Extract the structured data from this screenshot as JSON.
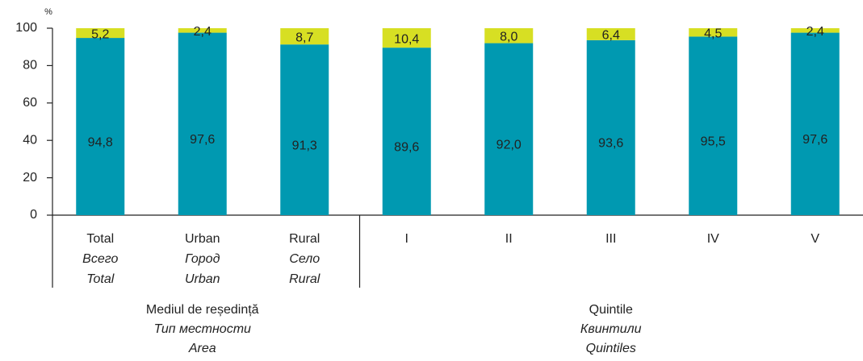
{
  "chart_data": {
    "type": "stacked_bar",
    "y_unit": "%",
    "categories": [
      "Total",
      "Urban",
      "Rural",
      "I",
      "II",
      "III",
      "IV",
      "V"
    ],
    "category_sublabels": [
      [
        "Всего",
        "Total"
      ],
      [
        "Город",
        "Urban"
      ],
      [
        "Село",
        "Rural"
      ],
      [],
      [],
      [],
      [],
      []
    ],
    "groups": [
      {
        "labels": [
          "Mediul de reședință",
          "Тип местности",
          "Area"
        ],
        "size": 3
      },
      {
        "labels": [
          "Quintile",
          "Квинтили",
          "Quintiles"
        ],
        "size": 5
      }
    ],
    "series": [
      {
        "color": "#0099b1",
        "values": [
          94.8,
          97.6,
          91.3,
          89.6,
          92.0,
          93.6,
          95.5,
          97.6
        ],
        "value_labels": [
          "94,8",
          "97,6",
          "91,3",
          "89,6",
          "92,0",
          "93,6",
          "95,5",
          "97,6"
        ]
      },
      {
        "color": "#d7df23",
        "values": [
          5.2,
          2.4,
          8.7,
          10.4,
          8.0,
          6.4,
          4.5,
          2.4
        ],
        "value_labels": [
          "5,2",
          "2,4",
          "8,7",
          "10,4",
          "8,0",
          "6,4",
          "4,5",
          "2,4"
        ]
      }
    ],
    "ylim": [
      0,
      100
    ],
    "yticks": [
      0,
      20,
      40,
      60,
      80,
      100
    ]
  }
}
